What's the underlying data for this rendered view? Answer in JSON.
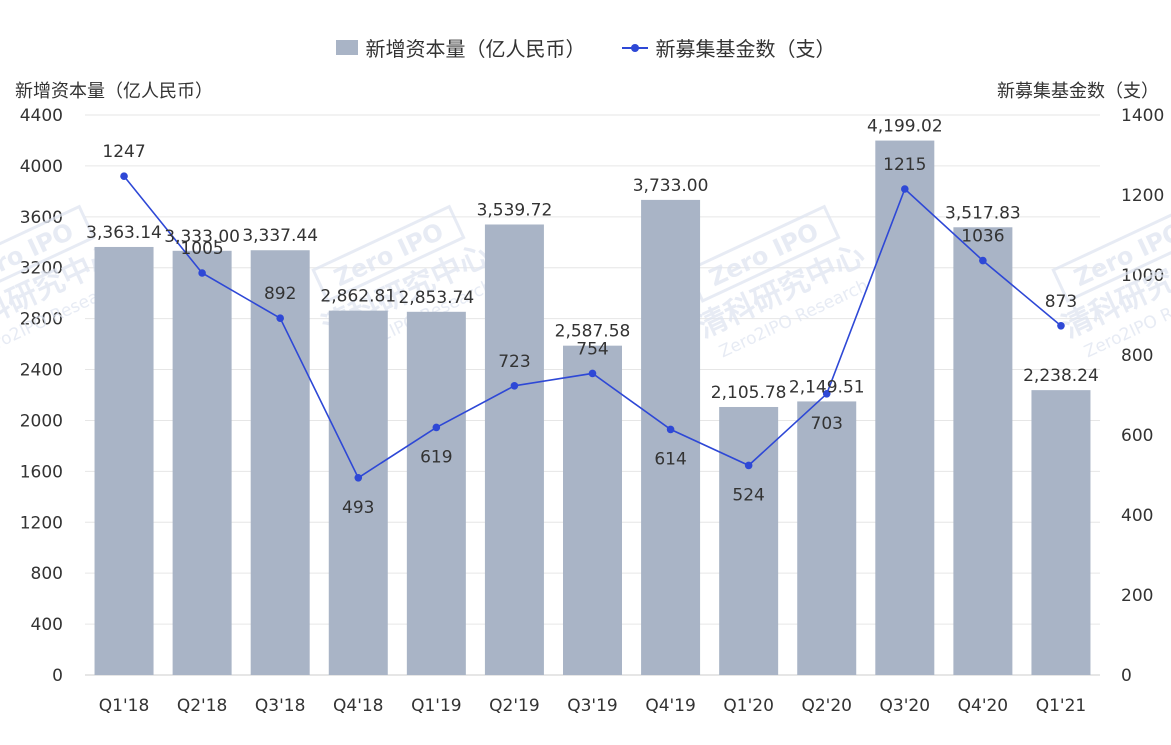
{
  "chart_data": {
    "type": "bar",
    "categories": [
      "Q1'18",
      "Q2'18",
      "Q3'18",
      "Q4'18",
      "Q1'19",
      "Q2'19",
      "Q3'19",
      "Q4'19",
      "Q1'20",
      "Q2'20",
      "Q3'20",
      "Q4'20",
      "Q1'21"
    ],
    "series": [
      {
        "name": "新增资本量（亿人民币）",
        "type": "bar",
        "axis": "left",
        "values": [
          3363.14,
          3333.0,
          3337.44,
          2862.81,
          2853.74,
          3539.72,
          2587.58,
          3733.0,
          2105.78,
          2149.51,
          4199.02,
          3517.83,
          2238.24
        ],
        "labels": [
          "3,363.14",
          "3,333.00",
          "3,337.44",
          "2,862.81",
          "2,853.74",
          "3,539.72",
          "2,587.58",
          "3,733.00",
          "2,105.78",
          "2,149.51",
          "4,199.02",
          "3,517.83",
          "2,238.24"
        ]
      },
      {
        "name": "新募集基金数（支）",
        "type": "line",
        "axis": "right",
        "values": [
          1247,
          1005,
          892,
          493,
          619,
          723,
          754,
          614,
          524,
          703,
          1215,
          1036,
          873
        ],
        "labels": [
          "1247",
          "1005",
          "892",
          "493",
          "619",
          "723",
          "754",
          "614",
          "524",
          "703",
          "1215",
          "1036",
          "873"
        ]
      }
    ],
    "y_left": {
      "label": "新增资本量（亿人民币）",
      "lim": [
        0,
        4400
      ],
      "ticks": [
        "0",
        "400",
        "800",
        "1200",
        "1600",
        "2000",
        "2400",
        "2800",
        "3200",
        "3600",
        "4000",
        "4400"
      ]
    },
    "y_right": {
      "label": "新募集基金数（支）",
      "lim": [
        0,
        1400
      ],
      "ticks": [
        "0",
        "200",
        "400",
        "600",
        "800",
        "1000",
        "1200",
        "1400"
      ]
    },
    "grid": true,
    "legend_position": "top-center",
    "watermark": {
      "cn": "清科研究中心",
      "en": "Zero2IPO Research",
      "logo": "Zero IPO"
    },
    "colors": {
      "bar": "#a9b4c6",
      "line": "#2e48d6",
      "grid": "#e6e6e6",
      "text": "#333333",
      "watermark": "#dfe5f1"
    }
  }
}
